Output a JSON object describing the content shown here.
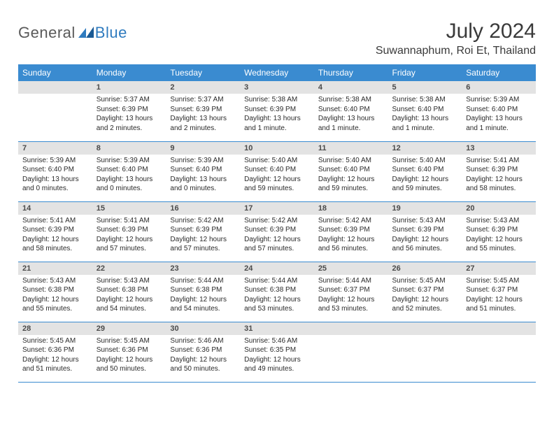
{
  "logo": {
    "text1": "General",
    "text2": "Blue",
    "mark_color": "#2f7bbf"
  },
  "header": {
    "month_title": "July 2024",
    "location": "Suwannaphum, Roi Et, Thailand"
  },
  "colors": {
    "header_bg": "#3a8bd0",
    "daynum_bg": "#e3e3e3",
    "rule": "#3a8bd0"
  },
  "weekdays": [
    "Sunday",
    "Monday",
    "Tuesday",
    "Wednesday",
    "Thursday",
    "Friday",
    "Saturday"
  ],
  "grid": [
    [
      null,
      {
        "n": "1",
        "sr": "5:37 AM",
        "ss": "6:39 PM",
        "dl": "13 hours and 2 minutes."
      },
      {
        "n": "2",
        "sr": "5:37 AM",
        "ss": "6:39 PM",
        "dl": "13 hours and 2 minutes."
      },
      {
        "n": "3",
        "sr": "5:38 AM",
        "ss": "6:39 PM",
        "dl": "13 hours and 1 minute."
      },
      {
        "n": "4",
        "sr": "5:38 AM",
        "ss": "6:40 PM",
        "dl": "13 hours and 1 minute."
      },
      {
        "n": "5",
        "sr": "5:38 AM",
        "ss": "6:40 PM",
        "dl": "13 hours and 1 minute."
      },
      {
        "n": "6",
        "sr": "5:39 AM",
        "ss": "6:40 PM",
        "dl": "13 hours and 1 minute."
      }
    ],
    [
      {
        "n": "7",
        "sr": "5:39 AM",
        "ss": "6:40 PM",
        "dl": "13 hours and 0 minutes."
      },
      {
        "n": "8",
        "sr": "5:39 AM",
        "ss": "6:40 PM",
        "dl": "13 hours and 0 minutes."
      },
      {
        "n": "9",
        "sr": "5:39 AM",
        "ss": "6:40 PM",
        "dl": "13 hours and 0 minutes."
      },
      {
        "n": "10",
        "sr": "5:40 AM",
        "ss": "6:40 PM",
        "dl": "12 hours and 59 minutes."
      },
      {
        "n": "11",
        "sr": "5:40 AM",
        "ss": "6:40 PM",
        "dl": "12 hours and 59 minutes."
      },
      {
        "n": "12",
        "sr": "5:40 AM",
        "ss": "6:40 PM",
        "dl": "12 hours and 59 minutes."
      },
      {
        "n": "13",
        "sr": "5:41 AM",
        "ss": "6:39 PM",
        "dl": "12 hours and 58 minutes."
      }
    ],
    [
      {
        "n": "14",
        "sr": "5:41 AM",
        "ss": "6:39 PM",
        "dl": "12 hours and 58 minutes."
      },
      {
        "n": "15",
        "sr": "5:41 AM",
        "ss": "6:39 PM",
        "dl": "12 hours and 57 minutes."
      },
      {
        "n": "16",
        "sr": "5:42 AM",
        "ss": "6:39 PM",
        "dl": "12 hours and 57 minutes."
      },
      {
        "n": "17",
        "sr": "5:42 AM",
        "ss": "6:39 PM",
        "dl": "12 hours and 57 minutes."
      },
      {
        "n": "18",
        "sr": "5:42 AM",
        "ss": "6:39 PM",
        "dl": "12 hours and 56 minutes."
      },
      {
        "n": "19",
        "sr": "5:43 AM",
        "ss": "6:39 PM",
        "dl": "12 hours and 56 minutes."
      },
      {
        "n": "20",
        "sr": "5:43 AM",
        "ss": "6:39 PM",
        "dl": "12 hours and 55 minutes."
      }
    ],
    [
      {
        "n": "21",
        "sr": "5:43 AM",
        "ss": "6:38 PM",
        "dl": "12 hours and 55 minutes."
      },
      {
        "n": "22",
        "sr": "5:43 AM",
        "ss": "6:38 PM",
        "dl": "12 hours and 54 minutes."
      },
      {
        "n": "23",
        "sr": "5:44 AM",
        "ss": "6:38 PM",
        "dl": "12 hours and 54 minutes."
      },
      {
        "n": "24",
        "sr": "5:44 AM",
        "ss": "6:38 PM",
        "dl": "12 hours and 53 minutes."
      },
      {
        "n": "25",
        "sr": "5:44 AM",
        "ss": "6:37 PM",
        "dl": "12 hours and 53 minutes."
      },
      {
        "n": "26",
        "sr": "5:45 AM",
        "ss": "6:37 PM",
        "dl": "12 hours and 52 minutes."
      },
      {
        "n": "27",
        "sr": "5:45 AM",
        "ss": "6:37 PM",
        "dl": "12 hours and 51 minutes."
      }
    ],
    [
      {
        "n": "28",
        "sr": "5:45 AM",
        "ss": "6:36 PM",
        "dl": "12 hours and 51 minutes."
      },
      {
        "n": "29",
        "sr": "5:45 AM",
        "ss": "6:36 PM",
        "dl": "12 hours and 50 minutes."
      },
      {
        "n": "30",
        "sr": "5:46 AM",
        "ss": "6:36 PM",
        "dl": "12 hours and 50 minutes."
      },
      {
        "n": "31",
        "sr": "5:46 AM",
        "ss": "6:35 PM",
        "dl": "12 hours and 49 minutes."
      },
      null,
      null,
      null
    ]
  ],
  "labels": {
    "sunrise_prefix": "Sunrise: ",
    "sunset_prefix": "Sunset: ",
    "daylight_prefix": "Daylight: "
  }
}
